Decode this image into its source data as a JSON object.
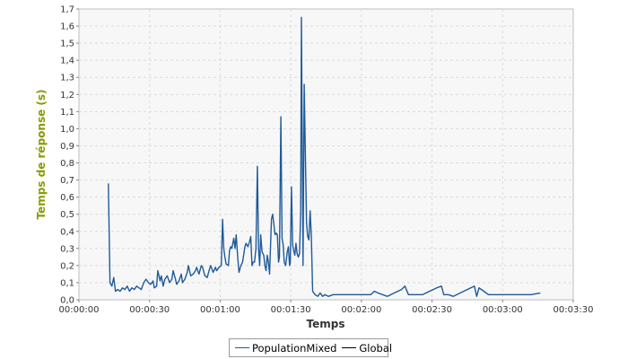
{
  "chart_data": {
    "type": "line",
    "title": "",
    "xlabel": "Temps",
    "ylabel": "Temps de réponse (s)",
    "xlim": [
      0,
      210
    ],
    "ylim": [
      0,
      1.7
    ],
    "x_ticks": [
      {
        "v": 0,
        "label": "00:00:00"
      },
      {
        "v": 30,
        "label": "00:00:30"
      },
      {
        "v": 60,
        "label": "00:01:00"
      },
      {
        "v": 90,
        "label": "00:01:30"
      },
      {
        "v": 120,
        "label": "00:02:00"
      },
      {
        "v": 150,
        "label": "00:02:30"
      },
      {
        "v": 180,
        "label": "00:03:00"
      },
      {
        "v": 210,
        "label": "00:03:30"
      }
    ],
    "y_ticks": [
      "0,0",
      "0,1",
      "0,2",
      "0,3",
      "0,4",
      "0,5",
      "0,6",
      "0,7",
      "0,8",
      "0,9",
      "1,0",
      "1,1",
      "1,2",
      "1,3",
      "1,4",
      "1,5",
      "1,6",
      "1,7"
    ],
    "grid": true,
    "legend_position": "bottom",
    "legend": [
      "PopulationMixed",
      "Global"
    ],
    "series": [
      {
        "name": "PopulationMixed",
        "color": "#1f5a9a",
        "points": [
          [
            12.5,
            0.68
          ],
          [
            13.2,
            0.1
          ],
          [
            14,
            0.08
          ],
          [
            14.8,
            0.13
          ],
          [
            15.5,
            0.05
          ],
          [
            16.5,
            0.06
          ],
          [
            17.5,
            0.05
          ],
          [
            18.5,
            0.07
          ],
          [
            19.5,
            0.06
          ],
          [
            20.5,
            0.08
          ],
          [
            21.5,
            0.05
          ],
          [
            22.5,
            0.07
          ],
          [
            23.5,
            0.06
          ],
          [
            24.5,
            0.08
          ],
          [
            25.5,
            0.07
          ],
          [
            26.5,
            0.06
          ],
          [
            27.5,
            0.1
          ],
          [
            28.5,
            0.12
          ],
          [
            29.5,
            0.1
          ],
          [
            30.5,
            0.09
          ],
          [
            31.5,
            0.11
          ],
          [
            32,
            0.07
          ],
          [
            33,
            0.08
          ],
          [
            33.5,
            0.17
          ],
          [
            34.5,
            0.11
          ],
          [
            35,
            0.14
          ],
          [
            35.8,
            0.08
          ],
          [
            36.5,
            0.12
          ],
          [
            37.5,
            0.14
          ],
          [
            38.5,
            0.1
          ],
          [
            39.5,
            0.12
          ],
          [
            40,
            0.17
          ],
          [
            41,
            0.12
          ],
          [
            41.5,
            0.09
          ],
          [
            42.5,
            0.11
          ],
          [
            43.5,
            0.15
          ],
          [
            44,
            0.1
          ],
          [
            45,
            0.12
          ],
          [
            46,
            0.16
          ],
          [
            46.5,
            0.2
          ],
          [
            47.5,
            0.14
          ],
          [
            48.5,
            0.15
          ],
          [
            49.5,
            0.17
          ],
          [
            50,
            0.19
          ],
          [
            51,
            0.15
          ],
          [
            52,
            0.2
          ],
          [
            52.5,
            0.19
          ],
          [
            53.5,
            0.14
          ],
          [
            54.5,
            0.13
          ],
          [
            55.5,
            0.18
          ],
          [
            56,
            0.2
          ],
          [
            57,
            0.16
          ],
          [
            58,
            0.19
          ],
          [
            58.5,
            0.17
          ],
          [
            59.5,
            0.19
          ],
          [
            60.5,
            0.2
          ],
          [
            61,
            0.47
          ],
          [
            61.5,
            0.3
          ],
          [
            62,
            0.25
          ],
          [
            62.5,
            0.21
          ],
          [
            63.5,
            0.2
          ],
          [
            64,
            0.29
          ],
          [
            64.5,
            0.31
          ],
          [
            65,
            0.3
          ],
          [
            65.8,
            0.36
          ],
          [
            66.3,
            0.3
          ],
          [
            66.8,
            0.38
          ],
          [
            67.5,
            0.24
          ],
          [
            68,
            0.16
          ],
          [
            68.8,
            0.2
          ],
          [
            69.5,
            0.22
          ],
          [
            70.5,
            0.31
          ],
          [
            71,
            0.33
          ],
          [
            71.8,
            0.31
          ],
          [
            72.5,
            0.34
          ],
          [
            73,
            0.37
          ],
          [
            73.5,
            0.2
          ],
          [
            74,
            0.22
          ],
          [
            74.6,
            0.22
          ],
          [
            75.2,
            0.3
          ],
          [
            75.8,
            0.78
          ],
          [
            76.3,
            0.3
          ],
          [
            76.8,
            0.2
          ],
          [
            77.2,
            0.38
          ],
          [
            77.8,
            0.28
          ],
          [
            78.5,
            0.26
          ],
          [
            79,
            0.2
          ],
          [
            79.5,
            0.17
          ],
          [
            80,
            0.26
          ],
          [
            80.5,
            0.22
          ],
          [
            81,
            0.15
          ],
          [
            81.8,
            0.47
          ],
          [
            82.3,
            0.5
          ],
          [
            82.8,
            0.44
          ],
          [
            83.3,
            0.38
          ],
          [
            83.8,
            0.39
          ],
          [
            84.3,
            0.38
          ],
          [
            84.8,
            0.22
          ],
          [
            85.2,
            0.25
          ],
          [
            85.8,
            1.07
          ],
          [
            86.3,
            0.36
          ],
          [
            86.8,
            0.32
          ],
          [
            87.2,
            0.22
          ],
          [
            87.8,
            0.2
          ],
          [
            88.5,
            0.28
          ],
          [
            89,
            0.31
          ],
          [
            89.5,
            0.2
          ],
          [
            89.8,
            0.22
          ],
          [
            90.3,
            0.66
          ],
          [
            90.8,
            0.32
          ],
          [
            91.2,
            0.29
          ],
          [
            91.7,
            0.26
          ],
          [
            92.2,
            0.33
          ],
          [
            92.7,
            0.27
          ],
          [
            93.2,
            0.25
          ],
          [
            93.7,
            0.27
          ],
          [
            94.2,
            0.52
          ],
          [
            94.5,
            1.65
          ],
          [
            95.2,
            0.2
          ],
          [
            95.7,
            1.26
          ],
          [
            96.2,
            0.85
          ],
          [
            96.7,
            0.45
          ],
          [
            97.2,
            0.37
          ],
          [
            97.7,
            0.35
          ],
          [
            98.2,
            0.52
          ],
          [
            98.7,
            0.38
          ],
          [
            99.3,
            0.05
          ],
          [
            100.3,
            0.03
          ],
          [
            101.5,
            0.02
          ],
          [
            102.5,
            0.04
          ],
          [
            103.5,
            0.02
          ],
          [
            104.5,
            0.03
          ],
          [
            106,
            0.02
          ],
          [
            108,
            0.03
          ],
          [
            112,
            0.03
          ],
          [
            116,
            0.03
          ],
          [
            118,
            0.03
          ],
          [
            120,
            0.03
          ],
          [
            121,
            0.03
          ],
          [
            122,
            0.03
          ],
          [
            123,
            0.03
          ],
          [
            124,
            0.03
          ],
          [
            125.5,
            0.05
          ],
          [
            127,
            0.04
          ],
          [
            129,
            0.03
          ],
          [
            131,
            0.02
          ],
          [
            134,
            0.04
          ],
          [
            137,
            0.06
          ],
          [
            138.5,
            0.08
          ],
          [
            140,
            0.03
          ],
          [
            143,
            0.03
          ],
          [
            146,
            0.03
          ],
          [
            149,
            0.05
          ],
          [
            152,
            0.07
          ],
          [
            154,
            0.08
          ],
          [
            155,
            0.03
          ],
          [
            157,
            0.03
          ],
          [
            159,
            0.02
          ],
          [
            162,
            0.04
          ],
          [
            165,
            0.06
          ],
          [
            168,
            0.08
          ],
          [
            169,
            0.02
          ],
          [
            170,
            0.07
          ],
          [
            172,
            0.05
          ],
          [
            174,
            0.03
          ],
          [
            176,
            0.03
          ],
          [
            178,
            0.03
          ],
          [
            180,
            0.03
          ],
          [
            184,
            0.03
          ],
          [
            188,
            0.03
          ],
          [
            192,
            0.03
          ],
          [
            196,
            0.04
          ]
        ]
      }
    ]
  }
}
